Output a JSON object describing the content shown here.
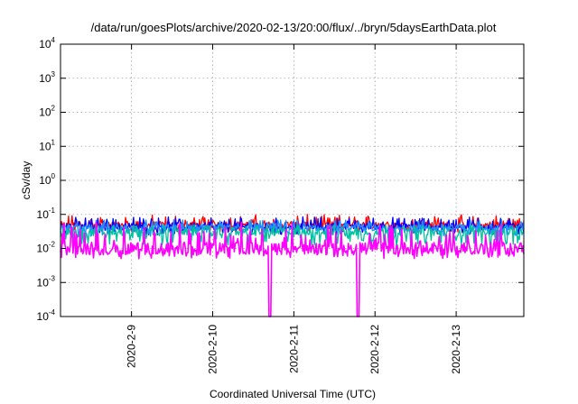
{
  "chart_data": {
    "type": "line",
    "title": "/data/run/goesPlots/archive/2020-02-13/20:00/flux/../bryn/5daysEarthData.plot",
    "xlabel": "Coordinated Universal Time (UTC)",
    "ylabel": "cSv/day",
    "x_range": [
      "2020-02-08T03:00",
      "2020-02-13T20:00"
    ],
    "x_ticks": [
      "2020-2-9",
      "2020-2-10",
      "2020-2-11",
      "2020-2-12",
      "2020-2-13"
    ],
    "y_scale": "log",
    "ylim": [
      0.0001,
      10000
    ],
    "y_ticks": [
      {
        "base": "10",
        "exp": "-4"
      },
      {
        "base": "10",
        "exp": "-3"
      },
      {
        "base": "10",
        "exp": "-2"
      },
      {
        "base": "10",
        "exp": "-1"
      },
      {
        "base": "10",
        "exp": "0"
      },
      {
        "base": "10",
        "exp": "1"
      },
      {
        "base": "10",
        "exp": "2"
      },
      {
        "base": "10",
        "exp": "3"
      },
      {
        "base": "10",
        "exp": "4"
      }
    ],
    "grid": true,
    "series": [
      {
        "color": "#ff0000",
        "level": 0.05,
        "min": 0.03,
        "max": 0.1
      },
      {
        "color": "#0000ff",
        "level": 0.045,
        "min": 0.025,
        "max": 0.085
      },
      {
        "color": "#1e90ff",
        "level": 0.04,
        "min": 0.022,
        "max": 0.07
      },
      {
        "color": "#00c0a0",
        "level": 0.03,
        "min": 0.012,
        "max": 0.05
      },
      {
        "color": "#ff00ff",
        "level": 0.01,
        "min": 0.005,
        "max": 0.06
      }
    ],
    "dropouts": [
      "2020-02-10T17:00",
      "2020-02-11T19:00"
    ]
  }
}
